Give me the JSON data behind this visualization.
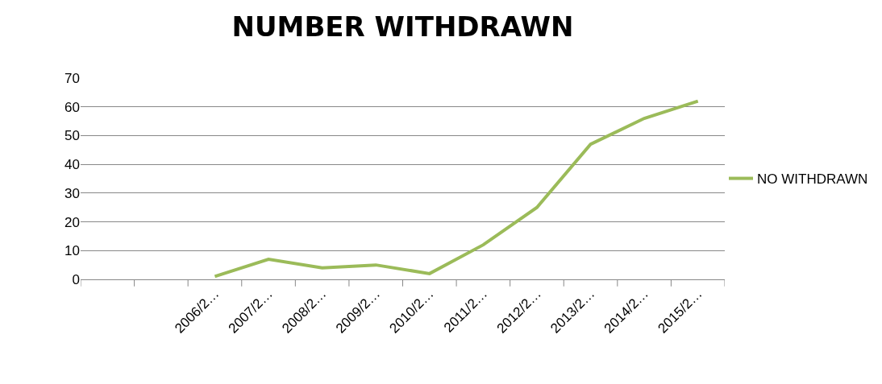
{
  "chart_data": {
    "type": "line",
    "title": "NUMBER WITHDRAWN",
    "categories": [
      null,
      null,
      "2006/2…",
      "2007/2…",
      "2008/2…",
      "2009/2…",
      "2010/2…",
      "2011/2…",
      "2012/2…",
      "2013/2…",
      "2014/2…",
      "2015/2…"
    ],
    "series": [
      {
        "name": "NO WITHDRAWN",
        "color": "#9bbb59",
        "values": [
          null,
          null,
          1,
          7,
          4,
          5,
          2,
          12,
          25,
          47,
          56,
          62
        ]
      }
    ],
    "ylim": [
      0,
      70
    ],
    "yticks": [
      0,
      10,
      20,
      30,
      40,
      50,
      60,
      70
    ],
    "grid": "y",
    "legend": "right",
    "marker": "none",
    "line_style": "solid"
  }
}
